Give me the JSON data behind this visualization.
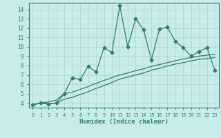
{
  "xlabel": "Humidex (Indice chaleur)",
  "background_color": "#c8ecec",
  "grid_color": "#b0d0d0",
  "line_color": "#2d7d6e",
  "xlim": [
    -0.5,
    23.5
  ],
  "ylim": [
    3.5,
    14.7
  ],
  "x_ticks": [
    0,
    1,
    2,
    3,
    4,
    5,
    6,
    7,
    8,
    9,
    10,
    11,
    12,
    13,
    14,
    15,
    16,
    17,
    18,
    19,
    20,
    21,
    22,
    23
  ],
  "y_ticks": [
    4,
    5,
    6,
    7,
    8,
    9,
    10,
    11,
    12,
    13,
    14
  ],
  "line1_x": [
    0,
    1,
    2,
    3,
    4,
    5,
    6,
    7,
    8,
    9,
    10,
    11,
    12,
    13,
    14,
    15,
    16,
    17,
    18,
    19,
    20,
    21,
    22,
    23
  ],
  "line1_y": [
    3.8,
    4.0,
    3.9,
    4.0,
    5.0,
    6.7,
    6.5,
    7.9,
    7.3,
    9.9,
    9.4,
    14.4,
    10.0,
    13.0,
    11.8,
    8.6,
    11.9,
    12.1,
    10.6,
    9.9,
    9.0,
    9.5,
    9.9,
    7.5
  ],
  "line2_x": [
    0,
    1,
    2,
    3,
    4,
    5,
    6,
    7,
    8,
    9,
    10,
    11,
    12,
    13,
    14,
    15,
    16,
    17,
    18,
    19,
    20,
    21,
    22,
    23
  ],
  "line2_y": [
    3.8,
    4.0,
    4.1,
    4.3,
    5.0,
    5.15,
    5.45,
    5.75,
    6.1,
    6.4,
    6.7,
    7.0,
    7.2,
    7.45,
    7.65,
    7.9,
    8.1,
    8.3,
    8.5,
    8.7,
    8.85,
    9.0,
    9.1,
    9.2
  ],
  "line3_x": [
    0,
    1,
    2,
    3,
    4,
    5,
    6,
    7,
    8,
    9,
    10,
    11,
    12,
    13,
    14,
    15,
    16,
    17,
    18,
    19,
    20,
    21,
    22,
    23
  ],
  "line3_y": [
    3.8,
    4.0,
    3.9,
    4.0,
    4.4,
    4.6,
    4.9,
    5.2,
    5.55,
    5.85,
    6.2,
    6.55,
    6.75,
    7.0,
    7.2,
    7.5,
    7.7,
    7.95,
    8.15,
    8.3,
    8.5,
    8.65,
    8.75,
    8.85
  ]
}
